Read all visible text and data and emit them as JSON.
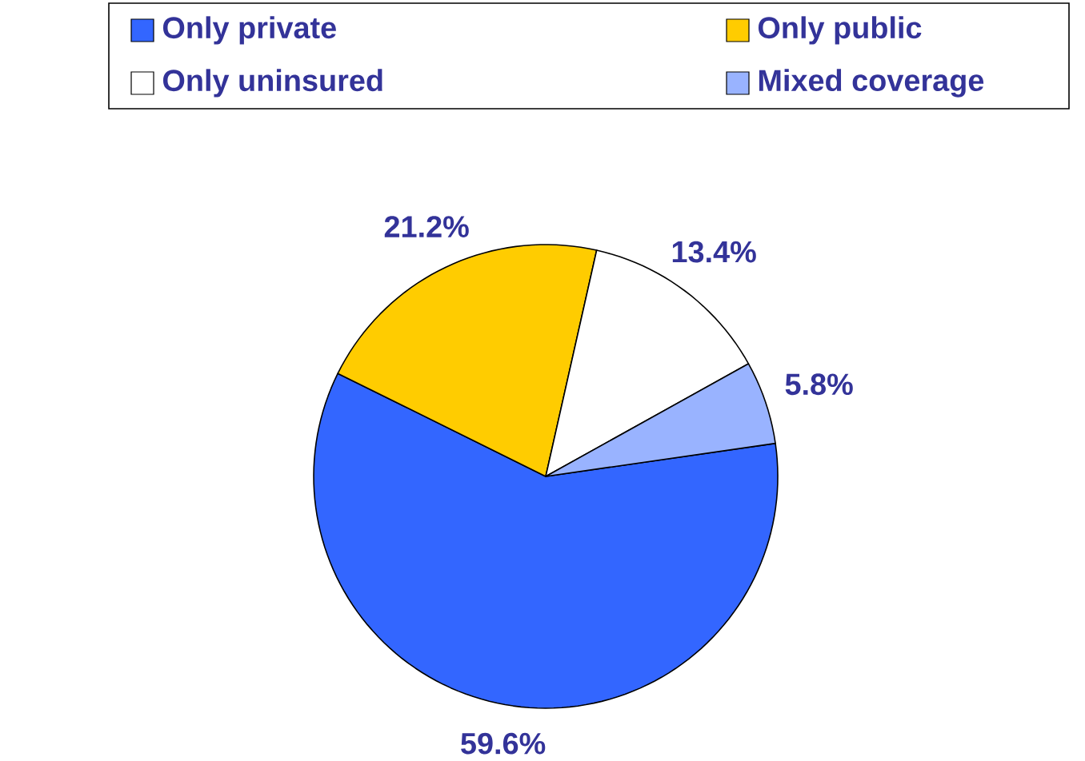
{
  "chart_data": {
    "type": "pie",
    "categories": [
      "Only private",
      "Only public",
      "Only uninsured",
      "Mixed coverage"
    ],
    "values": [
      59.6,
      21.2,
      13.4,
      5.8
    ],
    "value_labels": [
      "59.6%",
      "21.2%",
      "13.4%",
      "5.8%"
    ],
    "colors": [
      "#3366ff",
      "#ffcc00",
      "#ffffff",
      "#99b3ff"
    ],
    "legend": "top"
  }
}
